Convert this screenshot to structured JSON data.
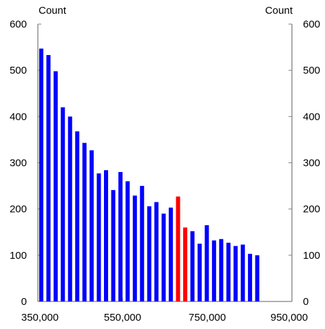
{
  "chart_data": {
    "type": "bar",
    "title": "",
    "left_axis_unit": "Count",
    "right_axis_unit": "Count",
    "y_ticks": [
      "0",
      "100",
      "200",
      "300",
      "400",
      "500",
      "600"
    ],
    "x_ticks": [
      "350,000",
      "550,000",
      "750,000",
      "950,000"
    ],
    "x_tick_values": [
      350000,
      550000,
      750000,
      950000
    ],
    "xlim": [
      350000,
      950000
    ],
    "ylim": [
      0,
      600
    ],
    "colors": {
      "default": "#0000ff",
      "highlight": "#ff0000",
      "axis": "#7f7f7f"
    },
    "bars": [
      {
        "x": 358000,
        "value": 547,
        "highlight": false
      },
      {
        "x": 375000,
        "value": 533,
        "highlight": false
      },
      {
        "x": 392000,
        "value": 498,
        "highlight": false
      },
      {
        "x": 409000,
        "value": 420,
        "highlight": false
      },
      {
        "x": 426000,
        "value": 400,
        "highlight": false
      },
      {
        "x": 443000,
        "value": 368,
        "highlight": false
      },
      {
        "x": 460000,
        "value": 343,
        "highlight": false
      },
      {
        "x": 477000,
        "value": 327,
        "highlight": false
      },
      {
        "x": 494000,
        "value": 277,
        "highlight": false
      },
      {
        "x": 511000,
        "value": 284,
        "highlight": false
      },
      {
        "x": 528000,
        "value": 241,
        "highlight": false
      },
      {
        "x": 545000,
        "value": 280,
        "highlight": false
      },
      {
        "x": 562000,
        "value": 260,
        "highlight": false
      },
      {
        "x": 579000,
        "value": 229,
        "highlight": false
      },
      {
        "x": 596000,
        "value": 250,
        "highlight": false
      },
      {
        "x": 613000,
        "value": 206,
        "highlight": false
      },
      {
        "x": 630000,
        "value": 215,
        "highlight": false
      },
      {
        "x": 647000,
        "value": 190,
        "highlight": false
      },
      {
        "x": 664000,
        "value": 203,
        "highlight": false
      },
      {
        "x": 681000,
        "value": 227,
        "highlight": true
      },
      {
        "x": 698000,
        "value": 160,
        "highlight": true
      },
      {
        "x": 715000,
        "value": 152,
        "highlight": false
      },
      {
        "x": 732000,
        "value": 125,
        "highlight": false
      },
      {
        "x": 749000,
        "value": 165,
        "highlight": false
      },
      {
        "x": 766000,
        "value": 132,
        "highlight": false
      },
      {
        "x": 783000,
        "value": 135,
        "highlight": false
      },
      {
        "x": 800000,
        "value": 127,
        "highlight": false
      },
      {
        "x": 817000,
        "value": 120,
        "highlight": false
      },
      {
        "x": 834000,
        "value": 123,
        "highlight": false
      },
      {
        "x": 851000,
        "value": 103,
        "highlight": false
      },
      {
        "x": 868000,
        "value": 100,
        "highlight": false
      }
    ]
  }
}
